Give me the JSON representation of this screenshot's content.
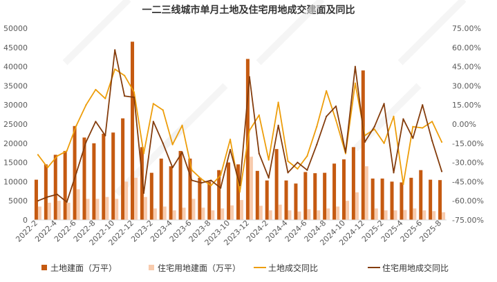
{
  "chart_data": {
    "type": "bar",
    "title": "一二三线城市单月土地及住宅用地成交建面及同比",
    "xlabel": "",
    "ylabel": "",
    "ylim": [
      0,
      50000
    ],
    "y2lim": [
      -75,
      75
    ],
    "y_ticks": [
      "0",
      "5000",
      "10000",
      "15000",
      "20000",
      "25000",
      "30000",
      "35000",
      "40000",
      "45000",
      "50000"
    ],
    "y2_ticks": [
      "-75.00%",
      "-60.00%",
      "-45.00%",
      "-30.00%",
      "-15.00%",
      "0.00%",
      "15.00%",
      "30.00%",
      "45.00%",
      "60.00%",
      "75.00%"
    ],
    "x_tick_labels": [
      "2022-2",
      "2022-4",
      "2022-6",
      "2022-8",
      "2022-10",
      "2022-12",
      "2023-2",
      "2023-4",
      "2023-6",
      "2023-8",
      "2023-10",
      "2023-12",
      "2024-2",
      "2024-4",
      "2024-6",
      "2024-8",
      "2024-10",
      "2024-12",
      "2025-2",
      "2025-4",
      "2025-6",
      "2025-8"
    ],
    "categories": [
      "2022-2",
      "2022-3",
      "2022-4",
      "2022-5",
      "2022-6",
      "2022-7",
      "2022-8",
      "2022-9",
      "2022-10",
      "2022-11",
      "2022-12",
      "2023-1",
      "2023-2",
      "2023-3",
      "2023-4",
      "2023-5",
      "2023-6",
      "2023-7",
      "2023-8",
      "2023-9",
      "2023-10",
      "2023-11",
      "2023-12",
      "2024-1",
      "2024-2",
      "2024-3",
      "2024-4",
      "2024-5",
      "2024-6",
      "2024-7",
      "2024-8",
      "2024-9",
      "2024-10",
      "2024-11",
      "2024-12",
      "2025-1",
      "2025-2",
      "2025-3",
      "2025-4",
      "2025-5",
      "2025-6",
      "2025-7",
      "2025-8"
    ],
    "series": [
      {
        "name": "土地建面（万平）",
        "kind": "bar",
        "axis": "left",
        "color": "#C55A11",
        "values": [
          10500,
          14500,
          17000,
          18000,
          24500,
          21500,
          20000,
          22500,
          22800,
          26500,
          46500,
          19000,
          12300,
          16000,
          14000,
          18000,
          16000,
          11000,
          10000,
          13000,
          15000,
          14500,
          42000,
          12800,
          10300,
          18500,
          10300,
          9500,
          12500,
          12200,
          12300,
          14700,
          15800,
          19000,
          39000,
          10800,
          10800,
          10000,
          9800,
          11000,
          13000,
          10500,
          10400
        ]
      },
      {
        "name": "住宅用地建面（万平）",
        "kind": "bar",
        "axis": "left",
        "color": "#F8CBAD",
        "values": [
          3500,
          4500,
          5000,
          4500,
          8000,
          5500,
          5500,
          6000,
          5500,
          10000,
          11000,
          6000,
          3000,
          3500,
          2500,
          3200,
          5500,
          3200,
          2500,
          3000,
          3800,
          5200,
          16500,
          3700,
          2500,
          4000,
          2500,
          2200,
          2800,
          2500,
          3000,
          3500,
          5000,
          7200,
          14000,
          3000,
          2500,
          2500,
          2600,
          3000,
          2500,
          2300,
          2000
        ]
      },
      {
        "name": "土地成交同比",
        "kind": "line",
        "axis": "right",
        "color": "#ED9D0A",
        "values": [
          -24,
          -34,
          -25,
          -21,
          -1,
          15,
          27,
          20,
          43,
          38,
          25,
          -23,
          16,
          11,
          -16,
          -1,
          -36,
          -43,
          -48,
          -40,
          -12,
          -53,
          -5,
          7,
          -28,
          17,
          -29,
          -35,
          -25,
          -2,
          26,
          3,
          -23,
          32,
          -9,
          -4,
          -15,
          6,
          -47,
          -2,
          -3,
          2,
          -14
        ]
      },
      {
        "name": "住宅用地成交同比",
        "kind": "line",
        "axis": "right",
        "color": "#843C0C",
        "values": [
          -60,
          -57,
          -55,
          -61,
          -38,
          -14,
          2,
          -9,
          58,
          22,
          21,
          -54,
          2,
          -15,
          -34,
          -22,
          -44,
          -46,
          -44,
          -50,
          -20,
          -48,
          37,
          -23,
          -42,
          -1,
          -38,
          -30,
          -36,
          -16,
          6,
          14,
          -22,
          45,
          -14,
          -2,
          16,
          -38,
          4,
          -11,
          15,
          -13,
          -37
        ]
      }
    ],
    "legend_position": "bottom",
    "grid": false
  }
}
